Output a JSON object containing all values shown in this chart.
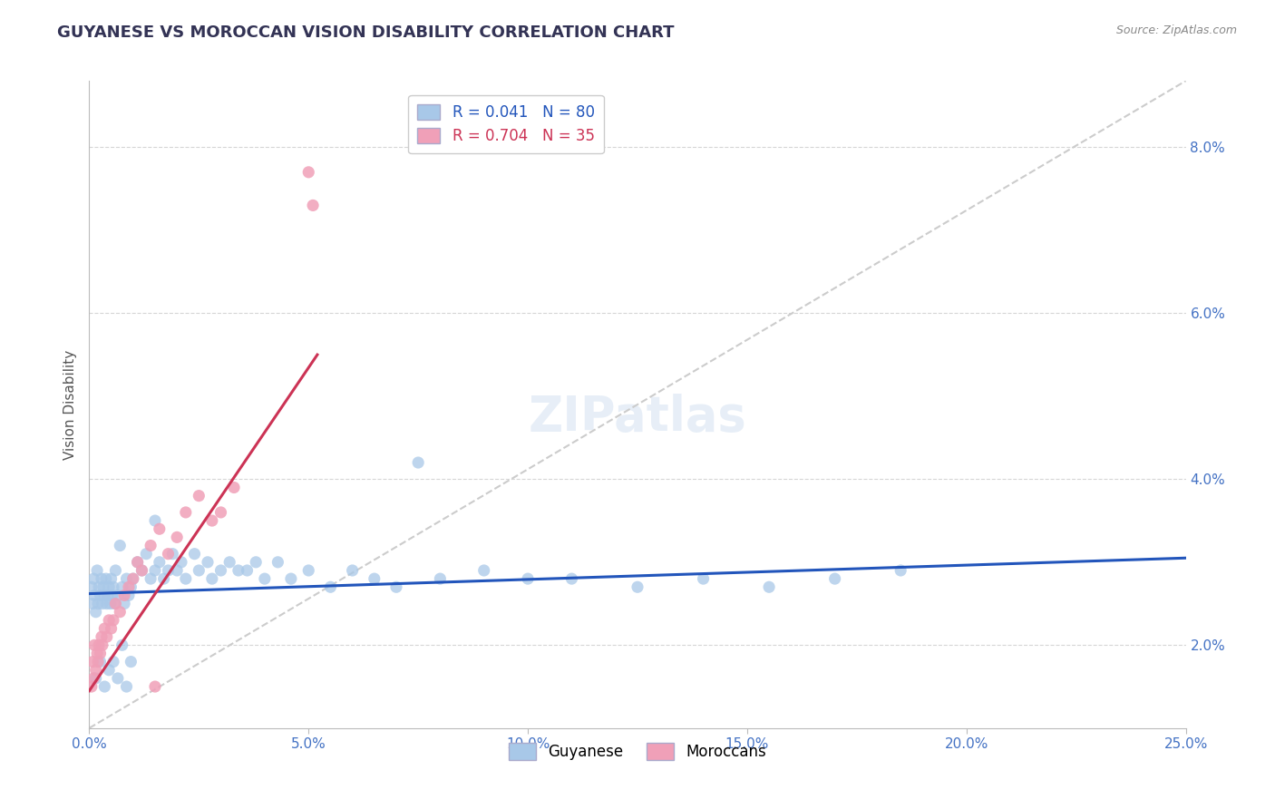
{
  "title": "GUYANESE VS MOROCCAN VISION DISABILITY CORRELATION CHART",
  "source": "Source: ZipAtlas.com",
  "xlim": [
    0.0,
    25.0
  ],
  "ylim": [
    1.0,
    8.8
  ],
  "blue_R": 0.041,
  "blue_N": 80,
  "pink_R": 0.704,
  "pink_N": 35,
  "blue_color": "#a8c8e8",
  "pink_color": "#f0a0b8",
  "blue_line_color": "#2255bb",
  "pink_line_color": "#cc3355",
  "ref_line_color": "#cccccc",
  "background_color": "#ffffff",
  "grid_color": "#cccccc",
  "title_color": "#333355",
  "axis_label_color": "#4472c4",
  "ylabel": "Vision Disability",
  "blue_trend_x": [
    0.0,
    25.0
  ],
  "blue_trend_y": [
    2.62,
    3.05
  ],
  "pink_trend_x": [
    0.0,
    5.2
  ],
  "pink_trend_y": [
    1.45,
    5.5
  ],
  "ref_line_x": [
    0.0,
    25.0
  ],
  "ref_line_y": [
    1.0,
    8.8
  ],
  "blue_x": [
    0.05,
    0.08,
    0.1,
    0.12,
    0.15,
    0.18,
    0.2,
    0.22,
    0.25,
    0.28,
    0.3,
    0.32,
    0.35,
    0.38,
    0.4,
    0.42,
    0.45,
    0.48,
    0.5,
    0.52,
    0.55,
    0.58,
    0.6,
    0.65,
    0.7,
    0.75,
    0.8,
    0.85,
    0.9,
    0.95,
    1.0,
    1.1,
    1.2,
    1.3,
    1.4,
    1.5,
    1.6,
    1.7,
    1.8,
    1.9,
    2.0,
    2.1,
    2.2,
    2.4,
    2.5,
    2.7,
    2.8,
    3.0,
    3.2,
    3.4,
    3.6,
    3.8,
    4.0,
    4.3,
    4.6,
    5.0,
    5.5,
    6.0,
    6.5,
    7.0,
    7.5,
    8.0,
    9.0,
    10.0,
    11.0,
    12.5,
    14.0,
    15.5,
    17.0,
    18.5,
    0.15,
    0.25,
    0.35,
    0.45,
    0.55,
    0.65,
    0.75,
    0.85,
    0.95,
    1.5
  ],
  "blue_y": [
    2.7,
    2.5,
    2.8,
    2.6,
    2.4,
    2.9,
    2.5,
    2.7,
    2.6,
    2.8,
    2.5,
    2.7,
    2.6,
    2.8,
    2.5,
    2.6,
    2.7,
    2.5,
    2.8,
    2.6,
    2.7,
    2.5,
    2.9,
    2.6,
    3.2,
    2.7,
    2.5,
    2.8,
    2.6,
    2.7,
    2.8,
    3.0,
    2.9,
    3.1,
    2.8,
    2.9,
    3.0,
    2.8,
    2.9,
    3.1,
    2.9,
    3.0,
    2.8,
    3.1,
    2.9,
    3.0,
    2.8,
    2.9,
    3.0,
    2.9,
    2.9,
    3.0,
    2.8,
    3.0,
    2.8,
    2.9,
    2.7,
    2.9,
    2.8,
    2.7,
    4.2,
    2.8,
    2.9,
    2.8,
    2.8,
    2.7,
    2.8,
    2.7,
    2.8,
    2.9,
    1.6,
    1.8,
    1.5,
    1.7,
    1.8,
    1.6,
    2.0,
    1.5,
    1.8,
    3.5
  ],
  "pink_x": [
    0.05,
    0.08,
    0.1,
    0.12,
    0.15,
    0.18,
    0.2,
    0.22,
    0.25,
    0.28,
    0.3,
    0.35,
    0.4,
    0.45,
    0.5,
    0.55,
    0.6,
    0.7,
    0.8,
    0.9,
    1.0,
    1.1,
    1.2,
    1.4,
    1.6,
    1.8,
    2.0,
    2.2,
    2.5,
    2.8,
    3.0,
    3.3,
    5.0,
    5.1,
    1.5
  ],
  "pink_y": [
    1.5,
    1.8,
    1.6,
    2.0,
    1.7,
    1.9,
    1.8,
    2.0,
    1.9,
    2.1,
    2.0,
    2.2,
    2.1,
    2.3,
    2.2,
    2.3,
    2.5,
    2.4,
    2.6,
    2.7,
    2.8,
    3.0,
    2.9,
    3.2,
    3.4,
    3.1,
    3.3,
    3.6,
    3.8,
    3.5,
    3.6,
    3.9,
    7.7,
    7.3,
    1.5
  ]
}
